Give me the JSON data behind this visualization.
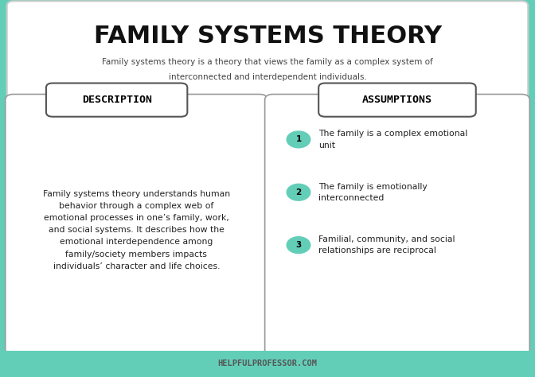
{
  "title": "FAMILY SYSTEMS THEORY",
  "subtitle_line1": "Family systems theory is a theory that views the family as a complex system of",
  "subtitle_line2": "interconnected and interdependent individuals.",
  "bg_color": "#63ceb8",
  "top_box_bg": "#ffffff",
  "top_box_border": "#cccccc",
  "card_bg": "#ffffff",
  "card_border": "#999999",
  "title_color": "#111111",
  "subtitle_color": "#444444",
  "desc_header": "DESCRIPTION",
  "assump_header": "ASSUMPTIONS",
  "desc_text": "Family systems theory understands human\nbehavior through a complex web of\nemotional processes in one’s family, work,\nand social systems. It describes how the\nemotional interdependence among\nfamily/society members impacts\nindividuals’ character and life choices.",
  "assump_items": [
    [
      "1",
      "The family is a complex emotional\nunit"
    ],
    [
      "2",
      "The family is emotionally\ninterconnected"
    ],
    [
      "3",
      "Familial, community, and social\nrelationships are reciprocal"
    ]
  ],
  "circle_color": "#63ceb8",
  "footer_text": "HELPFULPROFESSOR.COM",
  "footer_text_color": "#555555"
}
